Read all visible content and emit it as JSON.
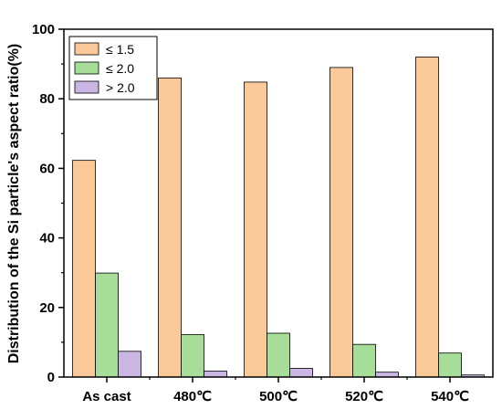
{
  "chart_data": {
    "type": "bar",
    "categories": [
      "As cast",
      "480℃",
      "500℃",
      "520℃",
      "540℃"
    ],
    "series": [
      {
        "name": "≤  1.5",
        "values": [
          62.3,
          86.0,
          84.8,
          89.0,
          92.0
        ],
        "color": "#f9c99a"
      },
      {
        "name": "≤  2.0",
        "values": [
          29.9,
          12.2,
          12.6,
          9.4,
          6.9
        ],
        "color": "#a6dd98"
      },
      {
        "name": ">  2.0",
        "values": [
          7.4,
          1.7,
          2.5,
          1.4,
          0.6
        ],
        "color": "#c9b6e2"
      }
    ],
    "xlabel": "",
    "ylabel": "Distribution of the Si particle's aspect ratio(%)",
    "ylim": [
      0,
      100
    ],
    "yticks": [
      "0",
      "20",
      "40",
      "60",
      "80",
      "100"
    ],
    "legend_position": "top-left",
    "grid": false
  }
}
